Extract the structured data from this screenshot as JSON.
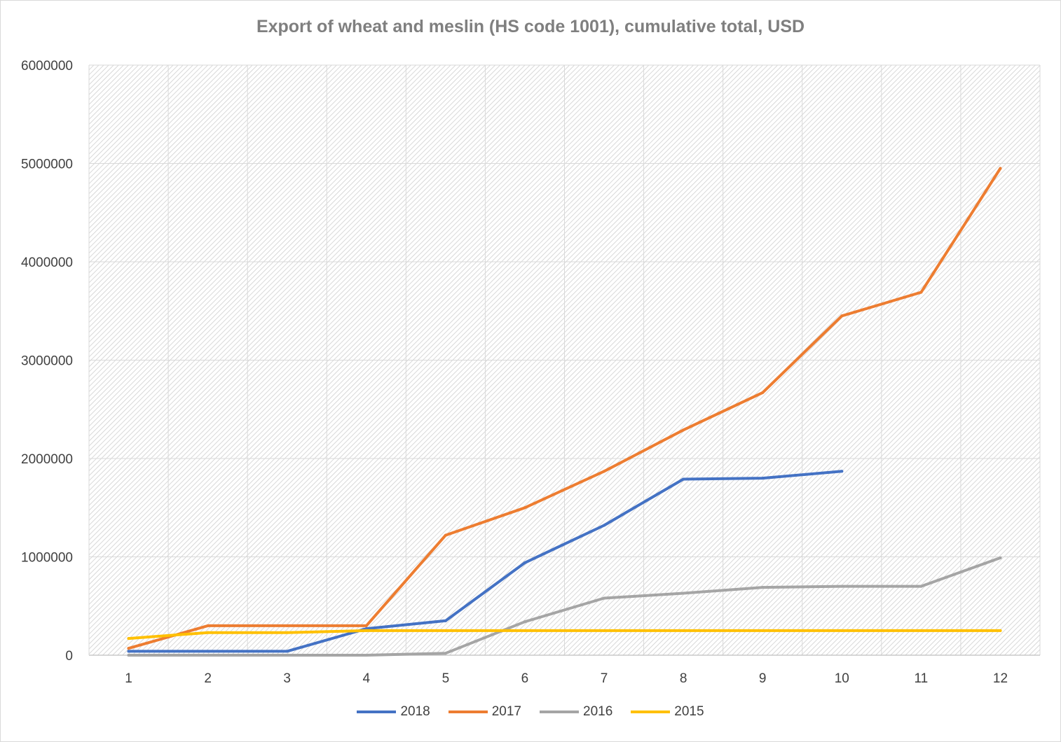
{
  "chart_data": {
    "type": "line",
    "title": "Export of wheat and meslin (HS code 1001), cumulative total, USD",
    "xlabel": "",
    "ylabel": "",
    "x": [
      1,
      2,
      3,
      4,
      5,
      6,
      7,
      8,
      9,
      10,
      11,
      12
    ],
    "ylim": [
      0,
      6000000
    ],
    "yticks": [
      0,
      1000000,
      2000000,
      3000000,
      4000000,
      5000000,
      6000000
    ],
    "grid": true,
    "legend_position": "bottom",
    "series": [
      {
        "name": "2018",
        "color": "#4472c4",
        "values": [
          40000,
          40000,
          40000,
          270000,
          350000,
          940000,
          1320000,
          1790000,
          1800000,
          1870000,
          null,
          null
        ]
      },
      {
        "name": "2017",
        "color": "#ed7d31",
        "values": [
          70000,
          300000,
          300000,
          300000,
          1220000,
          1500000,
          1870000,
          2290000,
          2670000,
          3450000,
          3690000,
          4950000
        ]
      },
      {
        "name": "2016",
        "color": "#a5a5a5",
        "values": [
          0,
          0,
          0,
          0,
          20000,
          340000,
          580000,
          630000,
          690000,
          700000,
          700000,
          990000
        ]
      },
      {
        "name": "2015",
        "color": "#ffc000",
        "values": [
          170000,
          230000,
          230000,
          250000,
          250000,
          250000,
          250000,
          250000,
          250000,
          250000,
          250000,
          250000
        ]
      }
    ]
  }
}
